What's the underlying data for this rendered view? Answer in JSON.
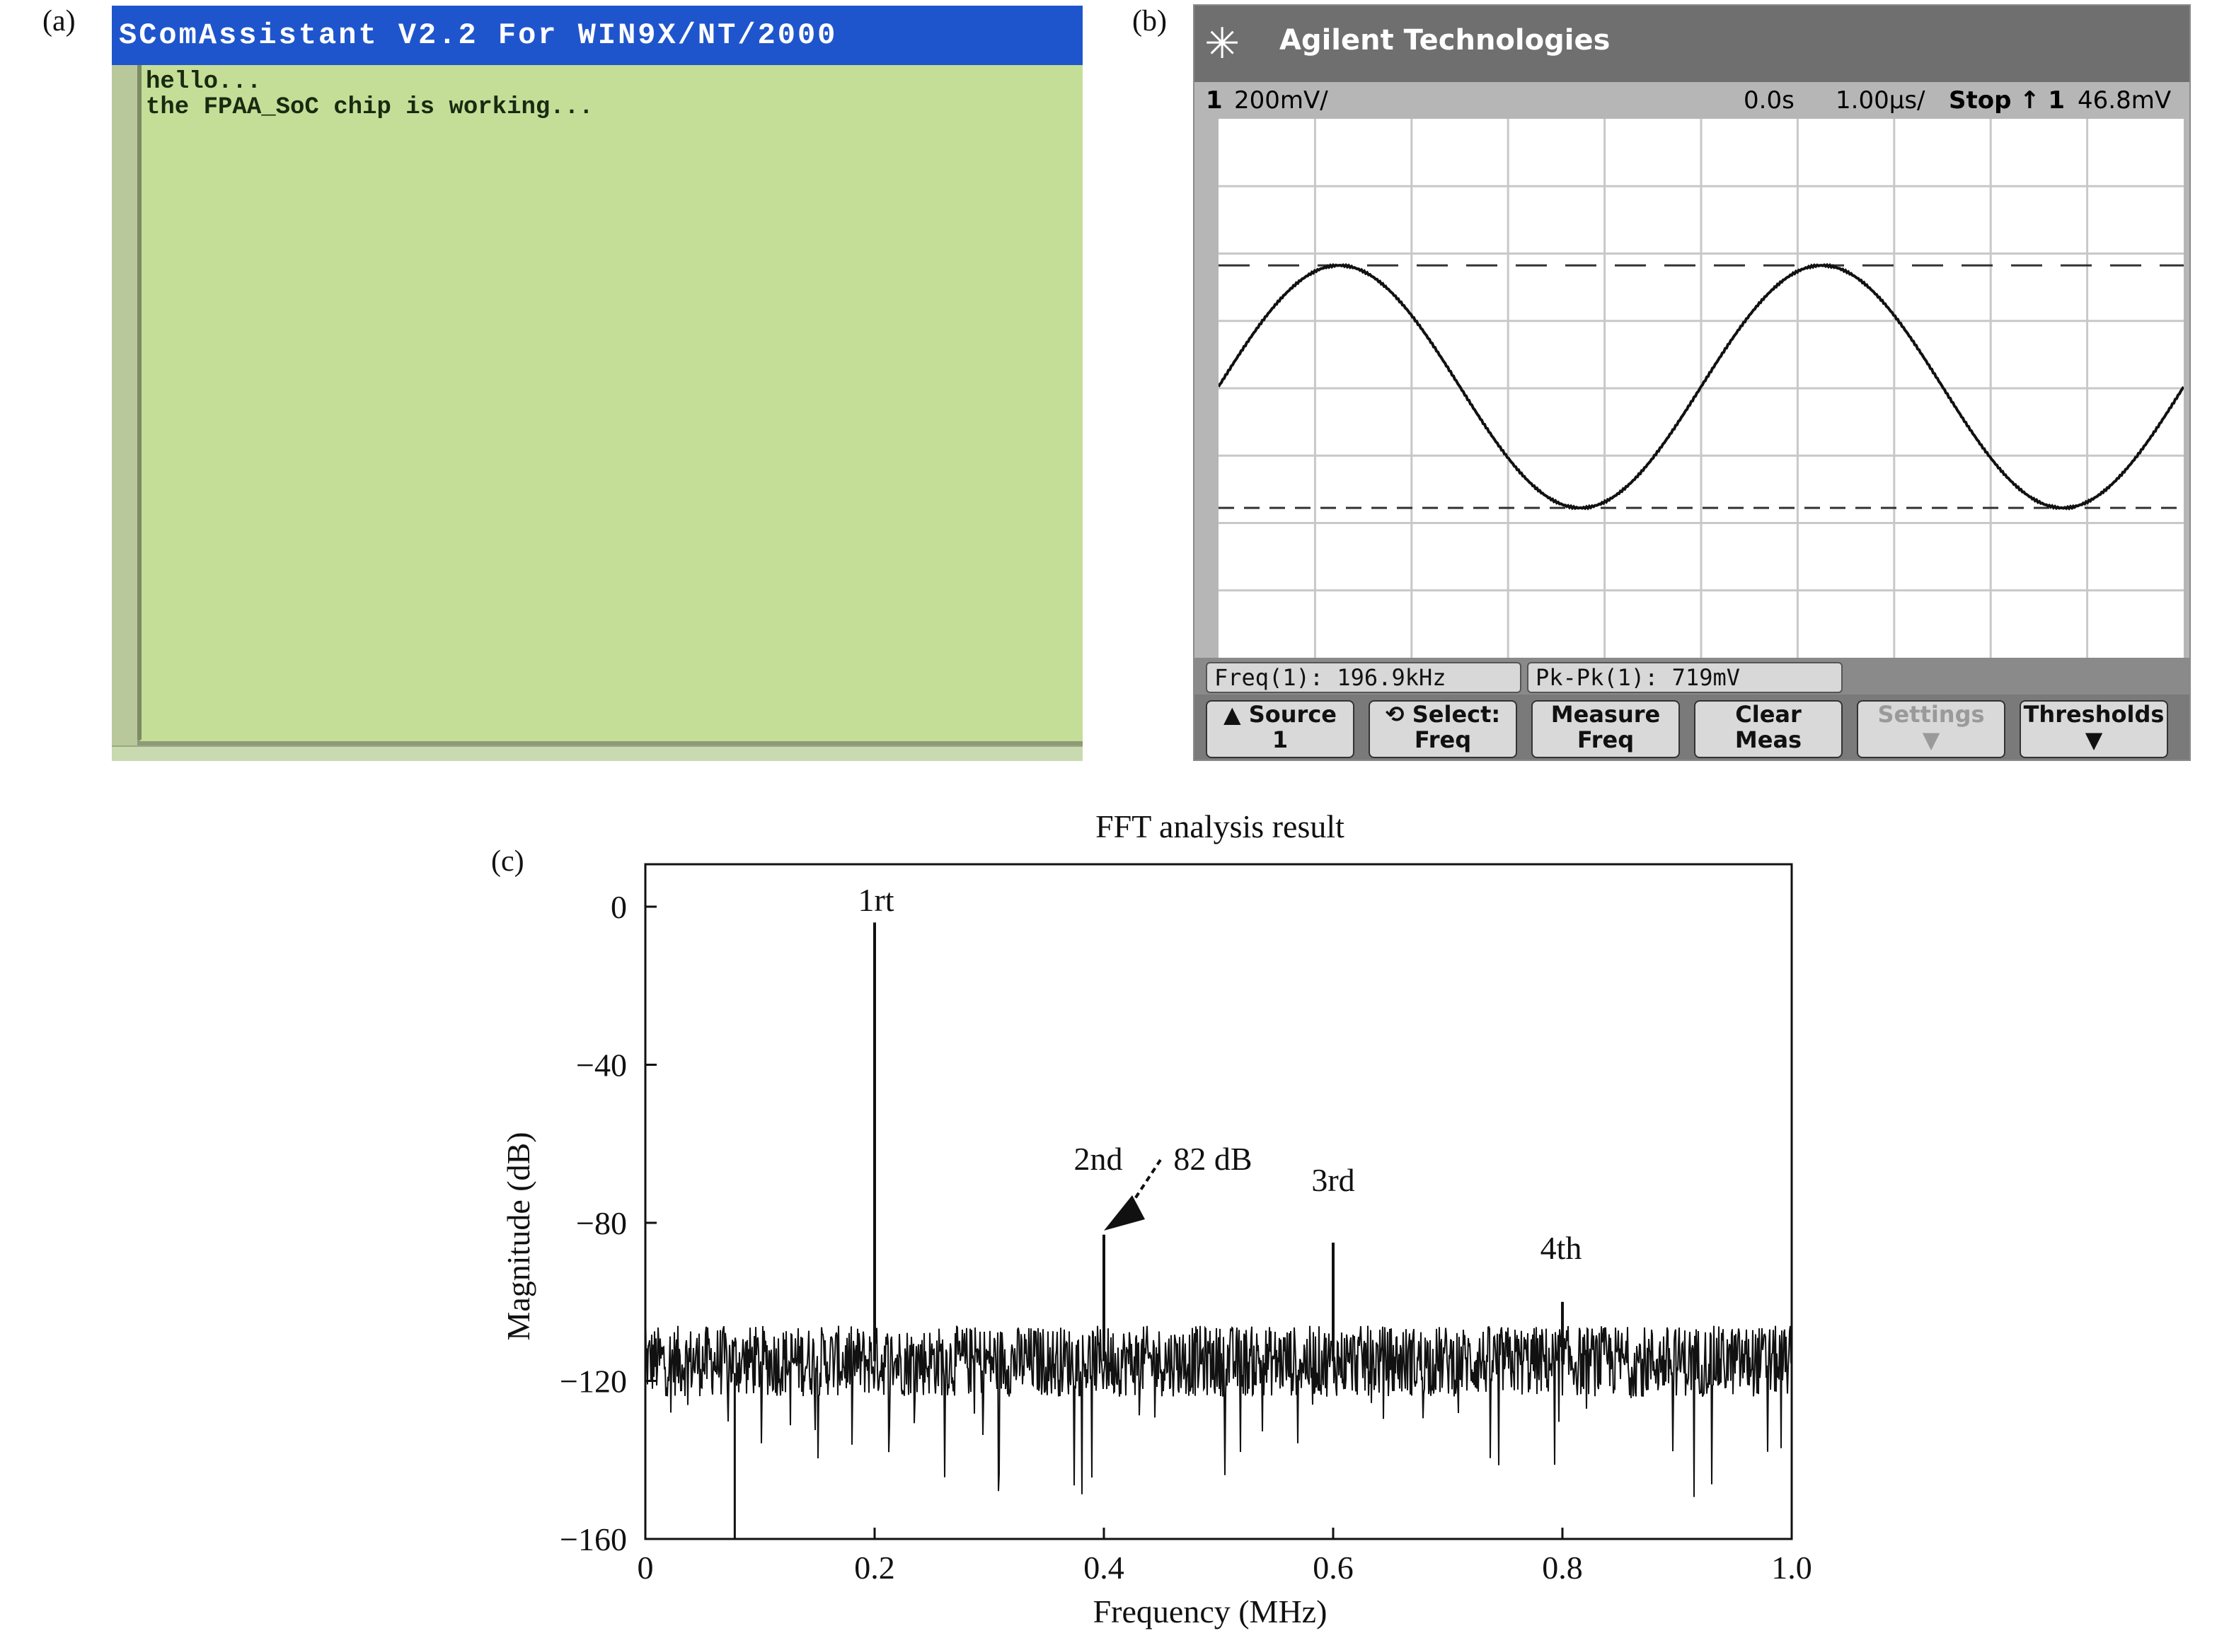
{
  "panels": {
    "a": "(a)",
    "b": "(b)",
    "c": "(c)"
  },
  "terminal": {
    "title": "SComAssistant V2.2 For WIN9X/NT/2000",
    "lines": [
      "hello...",
      "the FPAA_SoC chip is working..."
    ]
  },
  "scope": {
    "brand": "Agilent Technologies",
    "channel": "1",
    "volts_div": "200mV/",
    "time_offset": "0.0s",
    "time_div": "1.00μs/",
    "run_state": "Stop",
    "trigger": "↑ 1",
    "trigger_level": "46.8mV",
    "measurements": [
      "Freq(1): 196.9kHz",
      "Pk-Pk(1): 719mV"
    ],
    "softkeys": [
      {
        "l1": "▲ Source",
        "l2": "1",
        "disabled": false
      },
      {
        "l1": "⟲ Select:",
        "l2": "Freq",
        "disabled": false
      },
      {
        "l1": "Measure",
        "l2": "Freq",
        "disabled": false
      },
      {
        "l1": "Clear",
        "l2": "Meas",
        "disabled": false
      },
      {
        "l1": "Settings",
        "l2": "▼",
        "disabled": true
      },
      {
        "l1": "Thresholds",
        "l2": "▼",
        "disabled": false
      }
    ],
    "waveform": {
      "frequency_kHz": 196.9,
      "pk_pk_mV": 719
    },
    "colors": {
      "background": "#ffffff",
      "grid": "#c8c8c8",
      "trace": "#111111"
    }
  },
  "chart_data": {
    "type": "line",
    "title": "FFT analysis result",
    "xlabel": "Frequency (MHz)",
    "ylabel": "Magnitude (dB)",
    "xlim": [
      0,
      1.0
    ],
    "ylim": [
      -160,
      0
    ],
    "xticks": [
      "0",
      "0.2",
      "0.4",
      "0.6",
      "0.8",
      "1.0"
    ],
    "yticks": [
      "0",
      "−40",
      "−80",
      "−120",
      "−160"
    ],
    "noise_floor_dB": -115,
    "peaks": [
      {
        "label": "1rt",
        "x": 0.2,
        "y": -4
      },
      {
        "label": "2nd",
        "x": 0.4,
        "y": -83
      },
      {
        "label": "3rd",
        "x": 0.6,
        "y": -85
      },
      {
        "label": "4th",
        "x": 0.8,
        "y": -100
      }
    ],
    "annotation": "82 dB"
  }
}
